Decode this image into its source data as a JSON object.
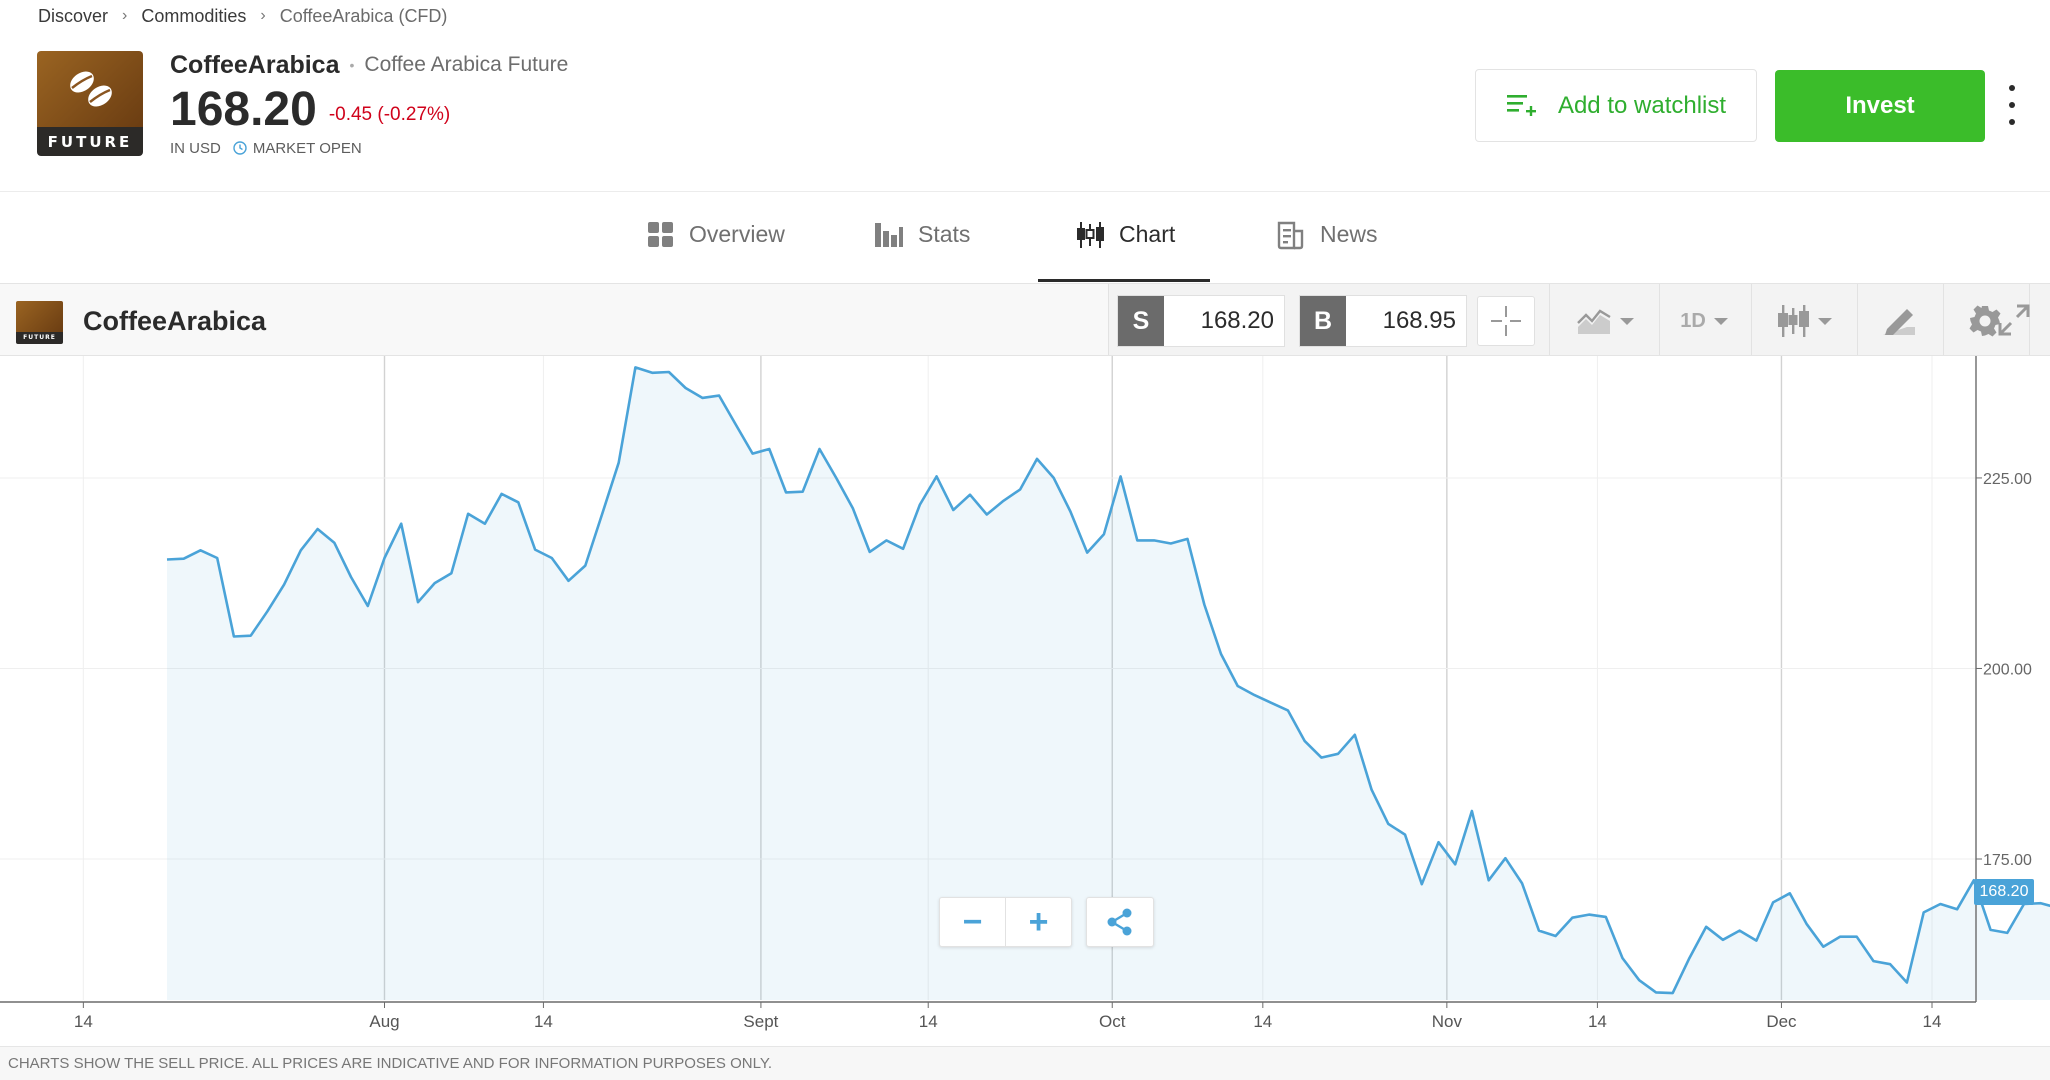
{
  "breadcrumb": [
    "Discover",
    "Commodities",
    "CoffeeArabica (CFD)"
  ],
  "instrument": {
    "logo_text": "FUTURE",
    "symbol": "CoffeeArabica",
    "full_name": "Coffee Arabica Future",
    "price": "168.20",
    "change": "-0.45 (-0.27%)",
    "currency": "IN USD",
    "market_status": "MARKET OPEN"
  },
  "actions": {
    "watchlist_label": "Add to watchlist",
    "invest_label": "Invest"
  },
  "tabs": [
    {
      "label": "Overview",
      "icon": "grid-icon"
    },
    {
      "label": "Stats",
      "icon": "bar-chart-icon"
    },
    {
      "label": "Chart",
      "icon": "candlestick-icon",
      "active": true
    },
    {
      "label": "News",
      "icon": "document-icon"
    }
  ],
  "chart_toolbar": {
    "name": "CoffeeArabica",
    "sell_label": "S",
    "sell_value": "168.20",
    "buy_label": "B",
    "buy_value": "168.95",
    "timeframe": "1D"
  },
  "price_tag": "168.20",
  "disclaimer": "CHARTS SHOW THE SELL PRICE. ALL PRICES ARE INDICATIVE AND FOR INFORMATION PURPOSES ONLY.",
  "colors": {
    "accent_green": "#3bbd2a",
    "line_blue": "#4aa3d8",
    "negative_red": "#d0021b"
  },
  "chart_data": {
    "type": "area",
    "title": "",
    "xlabel": "",
    "ylabel": "",
    "ylim": [
      156.5,
      241
    ],
    "y_ticks": [
      175,
      200,
      225
    ],
    "x_ticks": [
      {
        "label": "14",
        "pos": -5
      },
      {
        "label": "Aug",
        "pos": 13
      },
      {
        "label": "14",
        "pos": 22.5
      },
      {
        "label": "Sept",
        "pos": 35.5
      },
      {
        "label": "14",
        "pos": 45.5
      },
      {
        "label": "Oct",
        "pos": 56.5
      },
      {
        "label": "14",
        "pos": 65.5
      },
      {
        "label": "Nov",
        "pos": 76.5
      },
      {
        "label": "14",
        "pos": 85.5
      },
      {
        "label": "Dec",
        "pos": 96.5
      },
      {
        "label": "14",
        "pos": 105.5
      }
    ],
    "x_major_gridlines": [
      13,
      35.5,
      56.5,
      76.5,
      96.5
    ],
    "xlim": [
      -9,
      116.5
    ],
    "series": [
      {
        "values": [
          214.3,
          214.4,
          215.5,
          214.5,
          204.2,
          204.3,
          207.5,
          211,
          215.5,
          218.3,
          216.5,
          212,
          208.2,
          214.5,
          219,
          208.7,
          211.2,
          212.5,
          220.3,
          219,
          222.9,
          221.8,
          215.6,
          214.5,
          211.5,
          213.5,
          220.2,
          227,
          239.5,
          238.8,
          238.9,
          236.8,
          235.5,
          235.8,
          232,
          228.2,
          228.8,
          223.1,
          223.2,
          228.8,
          225,
          221,
          215.3,
          216.8,
          215.7,
          221.5,
          225.2,
          220.8,
          222.8,
          220.2,
          222,
          223.5,
          227.5,
          225,
          220.6,
          215.2,
          217.6,
          225.2,
          216.8,
          216.8,
          216.4,
          217,
          208.4,
          201.9,
          197.7,
          196.5,
          195.5,
          194.5,
          190.5,
          188.3,
          188.8,
          191.3,
          184.1,
          179.6,
          178.2,
          171.7,
          177.2,
          174.3,
          181.3,
          172.2,
          175.1,
          171.8,
          165.6,
          164.9,
          167.3,
          167.7,
          167.4,
          162,
          159.1,
          157.5,
          157.4,
          162,
          166.1,
          164.4,
          165.6,
          164.3,
          169.3,
          170.5,
          166.5,
          163.5,
          164.8,
          164.8,
          161.6,
          161.2,
          158.8,
          168,
          169.1,
          168.4,
          172.2,
          165.7,
          165.3,
          169.1,
          169.2,
          168.6
        ]
      }
    ]
  }
}
